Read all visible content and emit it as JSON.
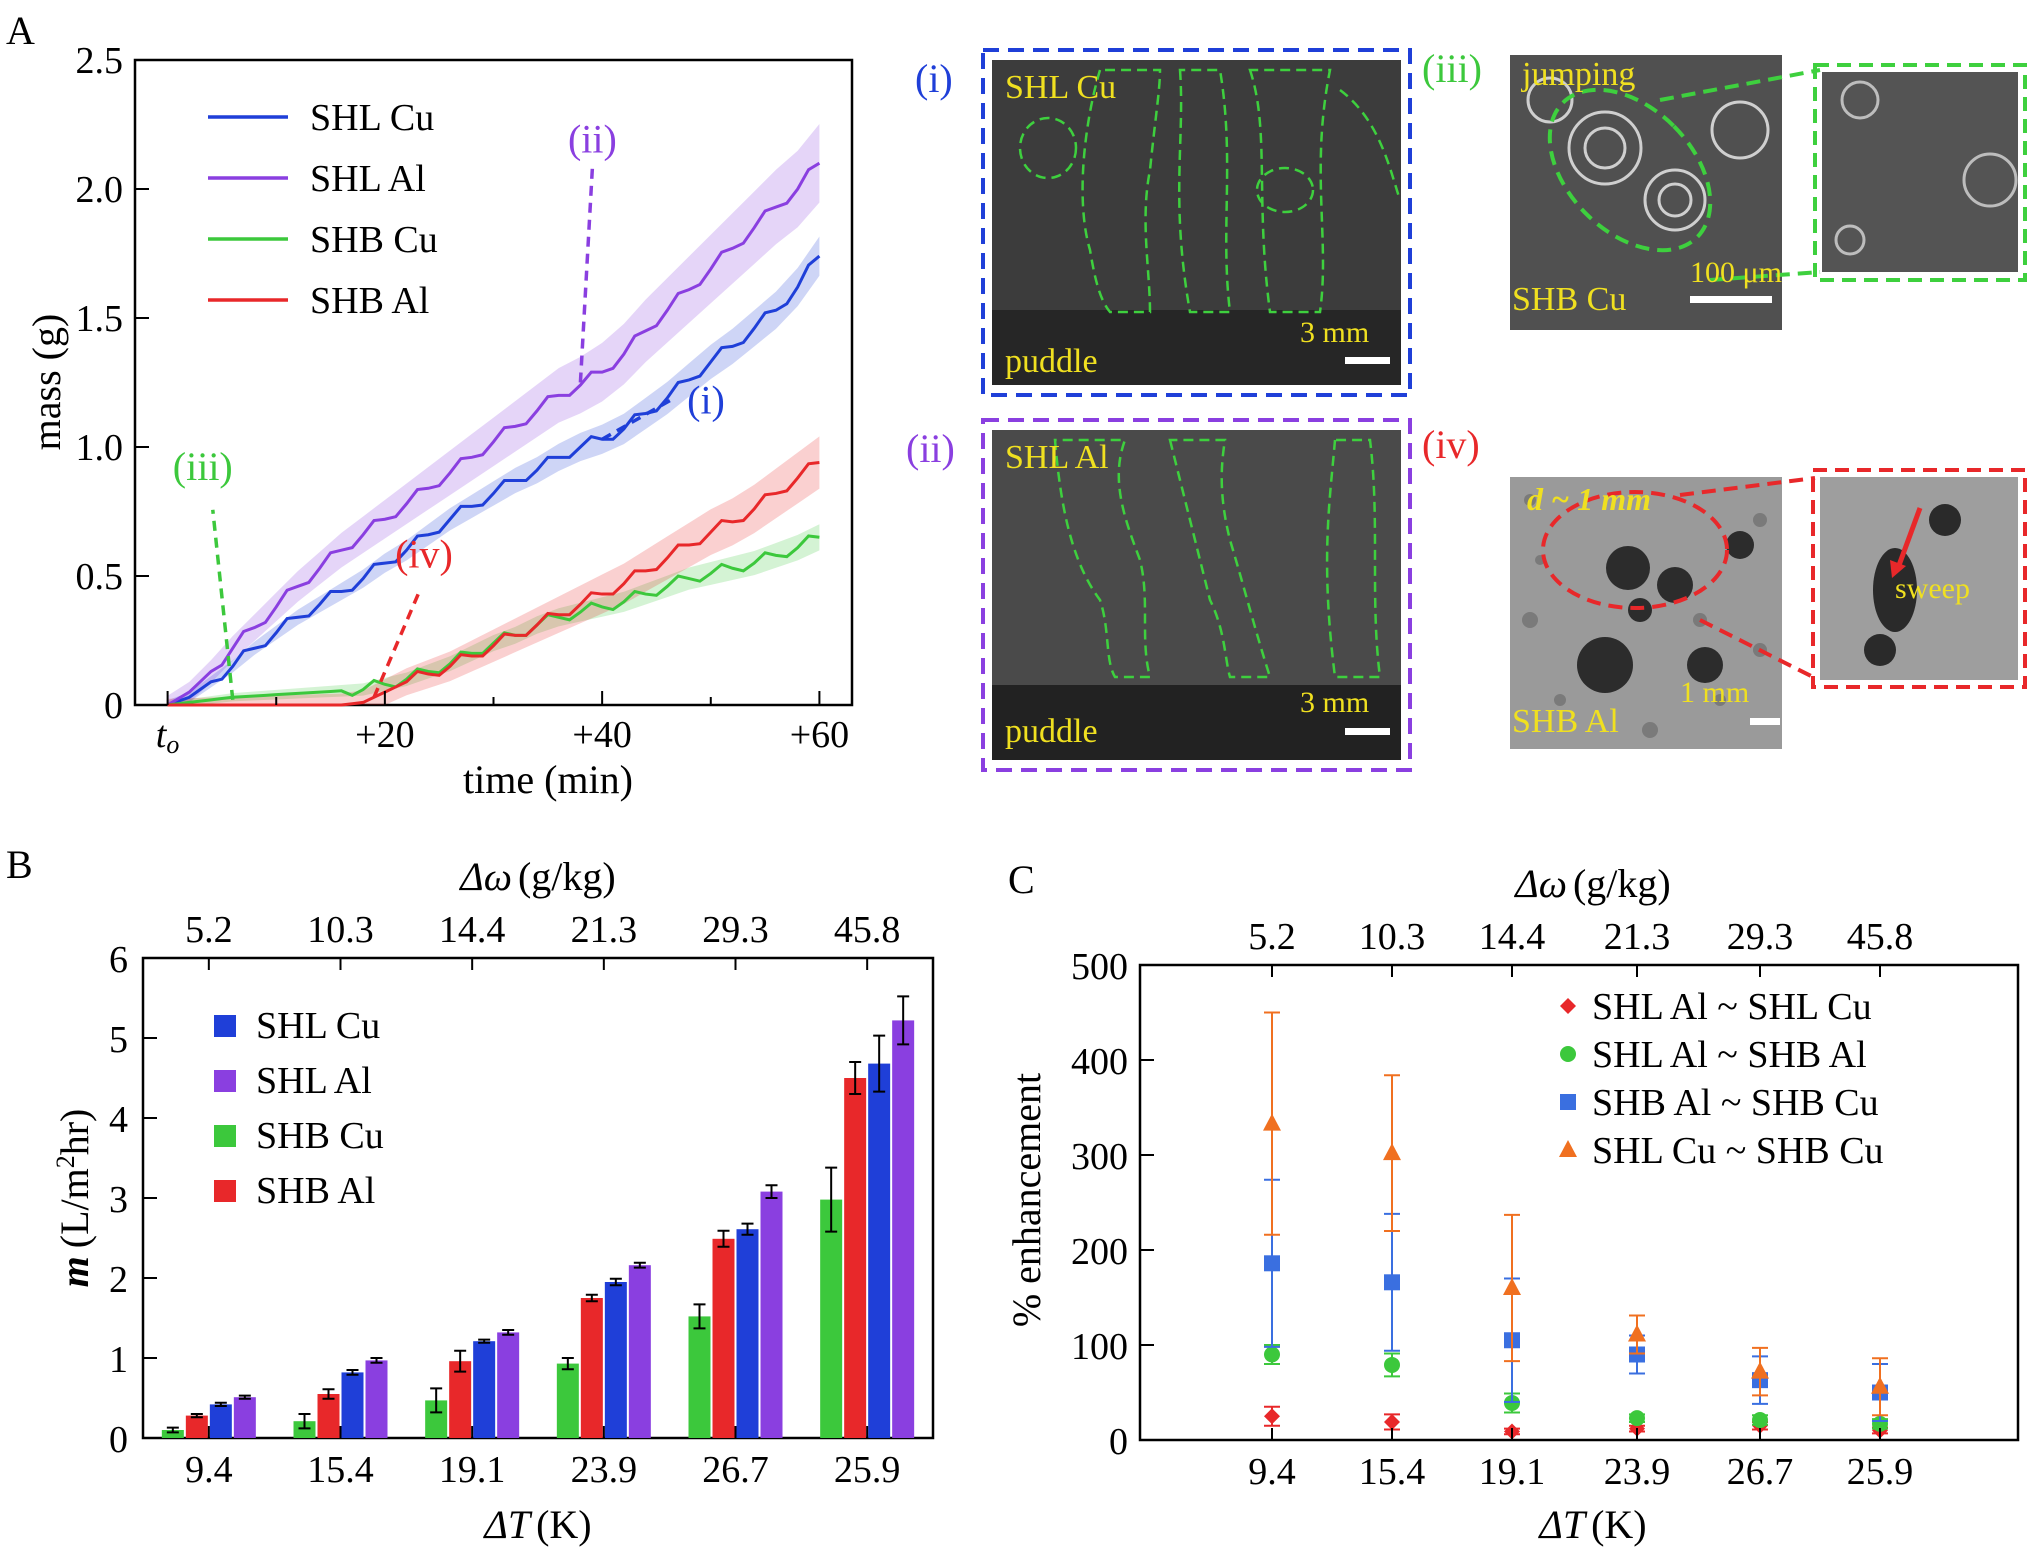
{
  "panels": {
    "a": "A",
    "b": "B",
    "c": "C"
  },
  "colors": {
    "shl_cu": "#1f3fd8",
    "shl_al": "#8a3fe0",
    "shb_cu": "#3cc83c",
    "shb_al": "#e8282a",
    "orange": "#f07020",
    "yellow": "#f0e020",
    "img_bg": "#3a3a3a"
  },
  "chart_data": [
    {
      "type": "line",
      "title": "A",
      "xlabel": "time (min)",
      "ylabel": "mass (g)",
      "xlim": [
        -3,
        63
      ],
      "ylim": [
        0,
        2.5
      ],
      "xticks": [
        {
          "v": 0,
          "label": "t",
          "sub": "o"
        },
        {
          "v": 20,
          "label": "+20"
        },
        {
          "v": 40,
          "label": "+40"
        },
        {
          "v": 60,
          "label": "+60"
        }
      ],
      "yticks": [
        {
          "v": 0,
          "label": "0"
        },
        {
          "v": 0.5,
          "label": "0.5"
        },
        {
          "v": 1.0,
          "label": "1.0"
        },
        {
          "v": 1.5,
          "label": "1.5"
        },
        {
          "v": 2.0,
          "label": "2.0"
        },
        {
          "v": 2.5,
          "label": "2.5"
        }
      ],
      "x": [
        0,
        2,
        4,
        6,
        8,
        10,
        12,
        14,
        16,
        18,
        20,
        22,
        24,
        26,
        28,
        30,
        32,
        34,
        36,
        38,
        40,
        42,
        44,
        46,
        48,
        50,
        52,
        54,
        56,
        58,
        60
      ],
      "series": [
        {
          "name": "SHL Cu",
          "color": "#1f3fd8",
          "values": [
            0,
            0.03,
            0.09,
            0.15,
            0.22,
            0.28,
            0.34,
            0.39,
            0.44,
            0.49,
            0.55,
            0.6,
            0.66,
            0.72,
            0.77,
            0.82,
            0.87,
            0.91,
            0.96,
            1.0,
            1.03,
            1.07,
            1.13,
            1.19,
            1.26,
            1.33,
            1.39,
            1.46,
            1.53,
            1.62,
            1.74
          ],
          "band": 0.06
        },
        {
          "name": "SHL Al",
          "color": "#8a3fe0",
          "values": [
            0,
            0.05,
            0.13,
            0.22,
            0.3,
            0.38,
            0.46,
            0.53,
            0.6,
            0.66,
            0.72,
            0.78,
            0.84,
            0.9,
            0.96,
            1.02,
            1.08,
            1.14,
            1.2,
            1.24,
            1.29,
            1.36,
            1.45,
            1.53,
            1.61,
            1.69,
            1.77,
            1.85,
            1.93,
            2.0,
            2.1
          ],
          "band": 0.12
        },
        {
          "name": "SHB Cu",
          "color": "#3cc83c",
          "values": [
            0,
            0.01,
            0.02,
            0.03,
            0.035,
            0.04,
            0.045,
            0.05,
            0.055,
            0.06,
            0.08,
            0.1,
            0.13,
            0.16,
            0.2,
            0.24,
            0.27,
            0.31,
            0.34,
            0.36,
            0.38,
            0.4,
            0.43,
            0.46,
            0.49,
            0.51,
            0.53,
            0.55,
            0.58,
            0.61,
            0.65
          ],
          "band": 0.04
        },
        {
          "name": "SHB Al",
          "color": "#e8282a",
          "values": [
            0,
            0,
            0,
            0,
            0,
            0,
            0,
            0,
            0,
            0.01,
            0.05,
            0.09,
            0.12,
            0.15,
            0.19,
            0.23,
            0.27,
            0.31,
            0.35,
            0.39,
            0.43,
            0.47,
            0.52,
            0.57,
            0.62,
            0.67,
            0.71,
            0.76,
            0.82,
            0.88,
            0.94
          ],
          "band": 0.08
        }
      ],
      "annotations": [
        {
          "label": "(i)",
          "color": "#1f3fd8",
          "x": 40,
          "y": 1.03
        },
        {
          "label": "(ii)",
          "color": "#8a3fe0",
          "x": 38,
          "y": 1.25
        },
        {
          "label": "(iii)",
          "color": "#3cc83c",
          "x": 6,
          "y": 0.02
        },
        {
          "label": "(iv)",
          "color": "#e8282a",
          "x": 19,
          "y": 0.03
        }
      ]
    },
    {
      "type": "bar",
      "title": "B",
      "xlabel_sym": "ΔT",
      "xlabel_unit": "(K)",
      "ylabel_sym": "m",
      "ylabel_unit": "(L/m",
      "ylabel_sup": "2",
      "ylabel_tail": "hr)",
      "top_axis_sym": "Δω",
      "top_axis_unit": "(g/kg)",
      "categories": [
        "9.4",
        "15.4",
        "19.1",
        "23.9",
        "26.7",
        "25.9"
      ],
      "top_categories": [
        "5.2",
        "10.3",
        "14.4",
        "21.3",
        "29.3",
        "45.8"
      ],
      "ylim": [
        0,
        6
      ],
      "yticks": [
        "0",
        "1",
        "2",
        "3",
        "4",
        "5",
        "6"
      ],
      "series": [
        {
          "name": "SHB Cu",
          "color": "#3cc83c",
          "values": [
            0.1,
            0.21,
            0.47,
            0.93,
            1.52,
            2.98
          ],
          "errors": [
            0.03,
            0.09,
            0.15,
            0.07,
            0.15,
            0.4
          ]
        },
        {
          "name": "SHB Al",
          "color": "#e8282a",
          "values": [
            0.28,
            0.55,
            0.96,
            1.75,
            2.49,
            4.5
          ],
          "errors": [
            0.02,
            0.06,
            0.13,
            0.04,
            0.1,
            0.2
          ]
        },
        {
          "name": "SHL Cu",
          "color": "#1f3fd8",
          "values": [
            0.42,
            0.82,
            1.21,
            1.95,
            2.61,
            4.68
          ],
          "errors": [
            0.02,
            0.03,
            0.02,
            0.04,
            0.07,
            0.35
          ]
        },
        {
          "name": "SHL Al",
          "color": "#8a3fe0",
          "values": [
            0.51,
            0.97,
            1.32,
            2.16,
            3.08,
            5.22
          ],
          "errors": [
            0.02,
            0.03,
            0.03,
            0.03,
            0.08,
            0.3
          ]
        }
      ],
      "legend_order": [
        "SHL Cu",
        "SHL Al",
        "SHB Cu",
        "SHB Al"
      ]
    },
    {
      "type": "scatter",
      "title": "C",
      "xlabel_sym": "ΔT",
      "xlabel_unit": "(K)",
      "ylabel": "% enhancement",
      "top_axis_sym": "Δω",
      "top_axis_unit": "(g/kg)",
      "categories": [
        "9.4",
        "15.4",
        "19.1",
        "23.9",
        "26.7",
        "25.9"
      ],
      "top_categories": [
        "5.2",
        "10.3",
        "14.4",
        "21.3",
        "29.3",
        "45.8"
      ],
      "ylim": [
        0,
        500
      ],
      "yticks": [
        "0",
        "100",
        "200",
        "300",
        "400",
        "500"
      ],
      "series": [
        {
          "name": "SHL Al ~ SHL Cu",
          "color": "#e8282a",
          "marker": "diamond",
          "values": [
            25,
            19,
            9,
            12,
            15,
            10
          ],
          "errors": [
            10,
            8,
            3,
            3,
            4,
            3
          ]
        },
        {
          "name": "SHL Al ~ SHB Al",
          "color": "#3cc83c",
          "marker": "circle",
          "values": [
            90,
            79,
            39,
            23,
            21,
            17
          ],
          "errors": [
            10,
            12,
            10,
            4,
            5,
            5
          ]
        },
        {
          "name": "SHB Al ~ SHB Cu",
          "color": "#3a6fe0",
          "marker": "square",
          "values": [
            186,
            166,
            105,
            90,
            63,
            50
          ],
          "errors": [
            88,
            72,
            65,
            20,
            25,
            30
          ]
        },
        {
          "name": "SHL Cu ~ SHB Cu",
          "color": "#f07020",
          "marker": "triangle",
          "values": [
            333,
            302,
            160,
            111,
            72,
            56
          ],
          "errors": [
            117,
            82,
            77,
            20,
            25,
            30
          ]
        }
      ]
    }
  ],
  "images": {
    "i": {
      "tag": "(i)",
      "name": "SHL Cu",
      "bottom": "puddle",
      "scale": "3 mm"
    },
    "ii": {
      "tag": "(ii)",
      "name": "SHL Al",
      "bottom": "puddle",
      "scale": "3 mm"
    },
    "iii": {
      "tag": "(iii)",
      "top": "jumping",
      "name": "SHB Cu",
      "scale": "100 μm"
    },
    "iv": {
      "tag": "(iv)",
      "top_sym": "d",
      "top_rest": " ~ 1 mm",
      "name": "SHB Al",
      "scale": "1 mm",
      "callout": "sweep"
    }
  }
}
